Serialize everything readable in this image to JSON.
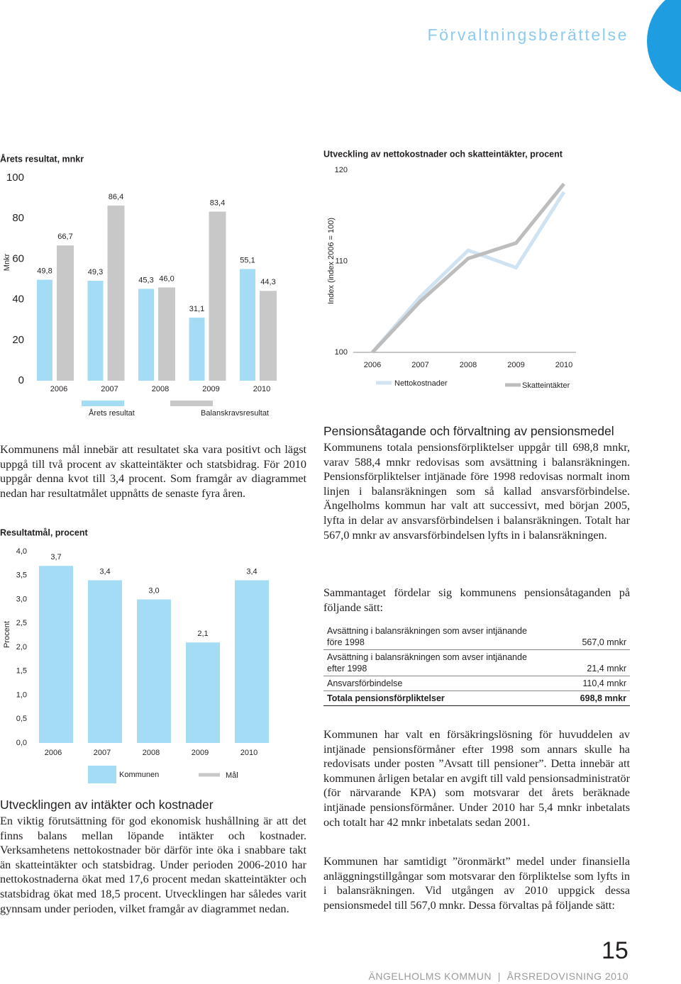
{
  "header": {
    "title": "Förvaltningsberättelse"
  },
  "chart_data": [
    {
      "type": "bar",
      "title": "Årets resultat, mnkr",
      "y_label": "Mnkr",
      "categories": [
        "2006",
        "2007",
        "2008",
        "2009",
        "2010"
      ],
      "series": [
        {
          "name": "Årets resultat",
          "color": "#a5dcf5",
          "values": [
            49.8,
            49.3,
            45.3,
            31.1,
            55.1
          ],
          "value_labels": [
            "49,8",
            "49,3",
            "45,3",
            "31,1",
            "55,1"
          ]
        },
        {
          "name": "Balanskravsresultat",
          "color": "#c8c8c8",
          "values": [
            66.7,
            86.4,
            46.0,
            83.4,
            44.3
          ],
          "value_labels": [
            "66,7",
            "86,4",
            "46,0",
            "83,4",
            "44,3"
          ]
        }
      ],
      "ylim": [
        0,
        100
      ],
      "yticks": [
        0,
        20,
        40,
        60,
        80,
        100
      ]
    },
    {
      "type": "line",
      "title": "Utveckling av nettokostnader och skatteintäkter, procent",
      "y_label": "Index (index 2006 = 100)",
      "categories": [
        "2006",
        "2007",
        "2008",
        "2009",
        "2010"
      ],
      "series": [
        {
          "name": "Nettokostnader",
          "color": "#cfe3f3",
          "values": [
            100,
            106.1,
            111.2,
            109.3,
            117.6
          ]
        },
        {
          "name": "Skatteintäkter",
          "color": "#bdbdbd",
          "values": [
            100,
            105.6,
            110.3,
            112.0,
            118.5
          ]
        }
      ],
      "ylim": [
        100,
        120
      ],
      "yticks": [
        100,
        110,
        120
      ]
    },
    {
      "type": "bar",
      "title": "Resultatmål, procent",
      "y_label": "Procent",
      "categories": [
        "2006",
        "2007",
        "2008",
        "2009",
        "2010"
      ],
      "series": [
        {
          "name": "Kommunen",
          "color": "#a5dcf5",
          "values": [
            3.7,
            3.4,
            3.0,
            2.1,
            3.4
          ],
          "value_labels": [
            "3,7",
            "3,4",
            "3,0",
            "2,1",
            "3,4"
          ]
        },
        {
          "name": "Mål",
          "color": "#c8c8c8",
          "values": [
            null,
            null,
            null,
            null,
            null
          ]
        }
      ],
      "ylim": [
        0,
        4
      ],
      "yticks": [
        {
          "value": 0,
          "label": "0,0"
        },
        {
          "value": 0.5,
          "label": "0,5"
        },
        {
          "value": 1,
          "label": "1,0"
        },
        {
          "value": 1.5,
          "label": "1,5"
        },
        {
          "value": 2,
          "label": "2,0"
        },
        {
          "value": 2.5,
          "label": "2,5"
        },
        {
          "value": 3,
          "label": "3,0"
        },
        {
          "value": 3.5,
          "label": "3,5"
        },
        {
          "value": 4,
          "label": "4,0"
        }
      ]
    }
  ],
  "left": {
    "intro": "Kommunens mål innebär att resultatet ska vara positivt och lägst uppgå till två procent av skatteintäkter och statsbidrag. För 2010 uppgår denna kvot till 3,4 procent. Som framgår av diagrammet nedan har resultatmålet uppnåtts de senaste fyra åren.",
    "heading": "Utvecklingen av intäkter och kostnader",
    "body": "En viktig förutsättning för god ekonomisk hushållning är att det finns balans mellan löpande intäkter och kostnader. Verksamhetens nettokostnader bör därför inte öka i snabbare takt än skatteintäkter och statsbidrag. Under perioden 2006-2010 har nettokostnaderna ökat med 17,6 procent medan skatteintäkter och statsbidrag ökat med 18,5 procent. Utvecklingen har således varit gynnsam under perioden, vilket framgår av diagrammet nedan."
  },
  "right": {
    "heading": "Pensionsåtagande och förvaltning av pensionsmedel",
    "body": "Kommunens totala pensionsförpliktelser uppgår till 698,8 mnkr, varav 588,4 mnkr redovisas som avsättning i balansräkningen. Pensionsförpliktelser intjänade före 1998 redovisas normalt inom linjen i balansräkningen som så kallad ansvarsförbindelse. Ängelholms kommun har valt att successivt, med början 2005, lyfta in delar av ansvarsförbindelsen i balansräkningen. Totalt har 567,0 mnkr av ansvarsförbindelsen lyfts in i balansräkningen.",
    "table_intro": "Sammantaget fördelar sig kommunens pensionsåtaganden på följande sätt:",
    "paragraphs": [
      "Kommunen har valt en försäkringslösning för huvuddelen av intjänade pensionsförmåner efter 1998 som annars skulle ha redovisats under posten ”Avsatt till pensioner”. Detta innebär att kommunen årligen betalar en avgift till vald pensionsadministratör (för närvarande KPA) som motsvarar det årets beräknade intjänade pensionsförmåner. Under 2010 har 5,4 mnkr inbetalats och totalt har 42 mnkr inbetalats sedan 2001.",
      "Kommunen har samtidigt ”öronmärkt” medel under finansiella anläggningstillgångar som motsvarar den förpliktelse som lyfts in i balansräkningen. Vid utgången av 2010 uppgick dessa pensionsmedel till 567,0 mnkr. Dessa förvaltas på följande sätt:"
    ]
  },
  "table": {
    "rows": [
      [
        "Avsättning i balansräkningen som avser intjänande före 1998",
        "567,0 mnkr"
      ],
      [
        "Avsättning i balansräkningen som avser intjänande efter 1998",
        "21,4 mnkr"
      ],
      [
        "Ansvarsförbindelse",
        "110,4 mnkr"
      ],
      [
        "Totala pensionsförpliktelser",
        "698,8 mnkr"
      ]
    ]
  },
  "footer": {
    "page": "15",
    "org": "ÄNGELHOLMS KOMMUN",
    "doc": "ÅRSREDOVISNING 2010"
  }
}
